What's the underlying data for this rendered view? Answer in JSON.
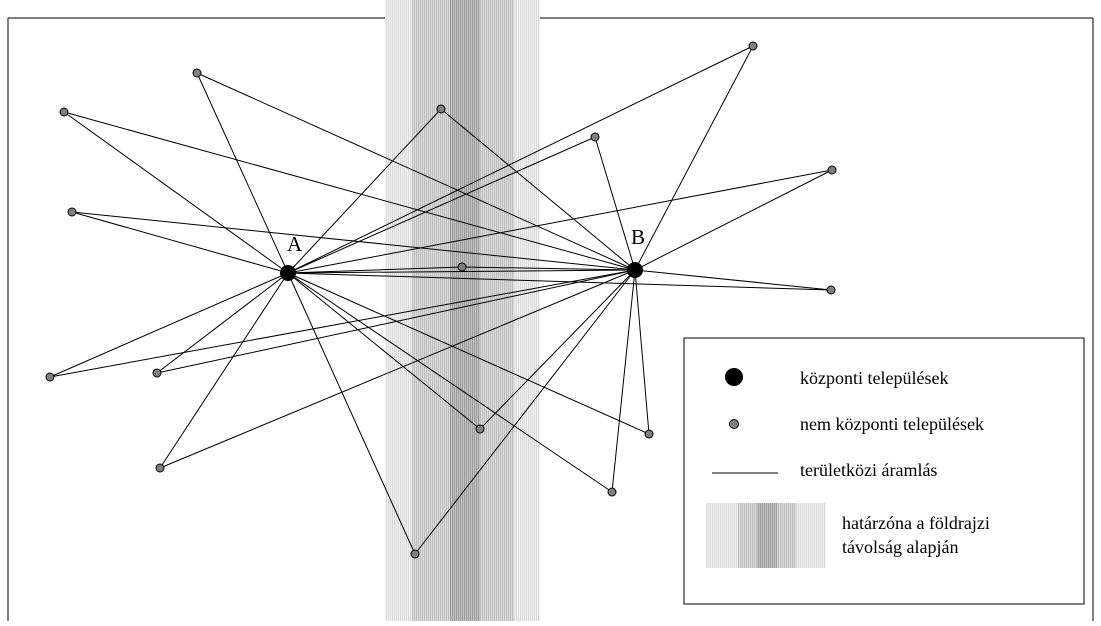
{
  "nodes": {
    "A": {
      "label": "A",
      "kind": "central"
    },
    "B": {
      "label": "B",
      "kind": "central"
    }
  },
  "legend": {
    "central": "központi települések",
    "noncentral": "nem központi települések",
    "flow": "területközi áramlás",
    "zone_line1": "határzóna a földrajzi",
    "zone_line2": "távolság alapján"
  },
  "colors": {
    "central_fill": "#000000",
    "noncentral_fill": "#808080",
    "zone_light": "#e6e6e6",
    "zone_mid": "#c8c8c8",
    "zone_dark": "#a0a0a0",
    "line": "#000000"
  }
}
